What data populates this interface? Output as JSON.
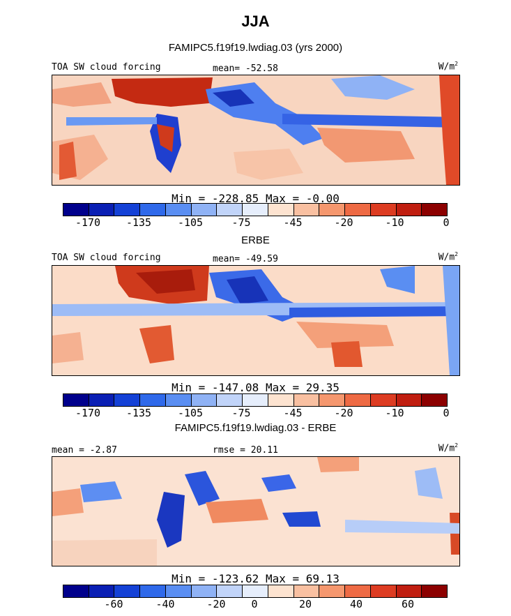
{
  "title": "JJA",
  "panels": [
    {
      "heading": "FAMIPC5.f19f19.lwdiag.03 (yrs 2000)",
      "left_label": "TOA SW cloud forcing",
      "center_label": "mean= -52.58",
      "units": "W/m",
      "units_sup": "2",
      "stats": "Min = -228.85 Max =  -0.00",
      "colorbar_ticks": [
        "-170",
        "-135",
        "-105",
        "-75",
        "-45",
        "-20",
        "-10",
        "0"
      ]
    },
    {
      "heading": "ERBE",
      "left_label": "TOA SW cloud forcing",
      "center_label": "mean= -49.59",
      "units": "W/m",
      "units_sup": "2",
      "stats": "Min = -147.08 Max =  29.35",
      "colorbar_ticks": [
        "-170",
        "-135",
        "-105",
        "-75",
        "-45",
        "-20",
        "-10",
        "0"
      ]
    },
    {
      "heading": "FAMIPC5.f19f19.lwdiag.03 - ERBE",
      "left_label": "mean =  -2.87",
      "center_label": "rmse =  20.11",
      "units": "W/m",
      "units_sup": "2",
      "stats": "Min = -123.62 Max =  69.13",
      "colorbar_ticks": [
        "-60",
        "-40",
        "-20",
        "0",
        "20",
        "40",
        "60"
      ]
    }
  ],
  "colorbar_colors": [
    "#00008c",
    "#0a1fb4",
    "#1441d6",
    "#2f69ea",
    "#5a8ef2",
    "#8fb2f5",
    "#c1d4f9",
    "#e6eefc",
    "#fde3d0",
    "#f9c0a1",
    "#f5976e",
    "#ee6a44",
    "#dd3c22",
    "#c01e10",
    "#8c0000"
  ]
}
